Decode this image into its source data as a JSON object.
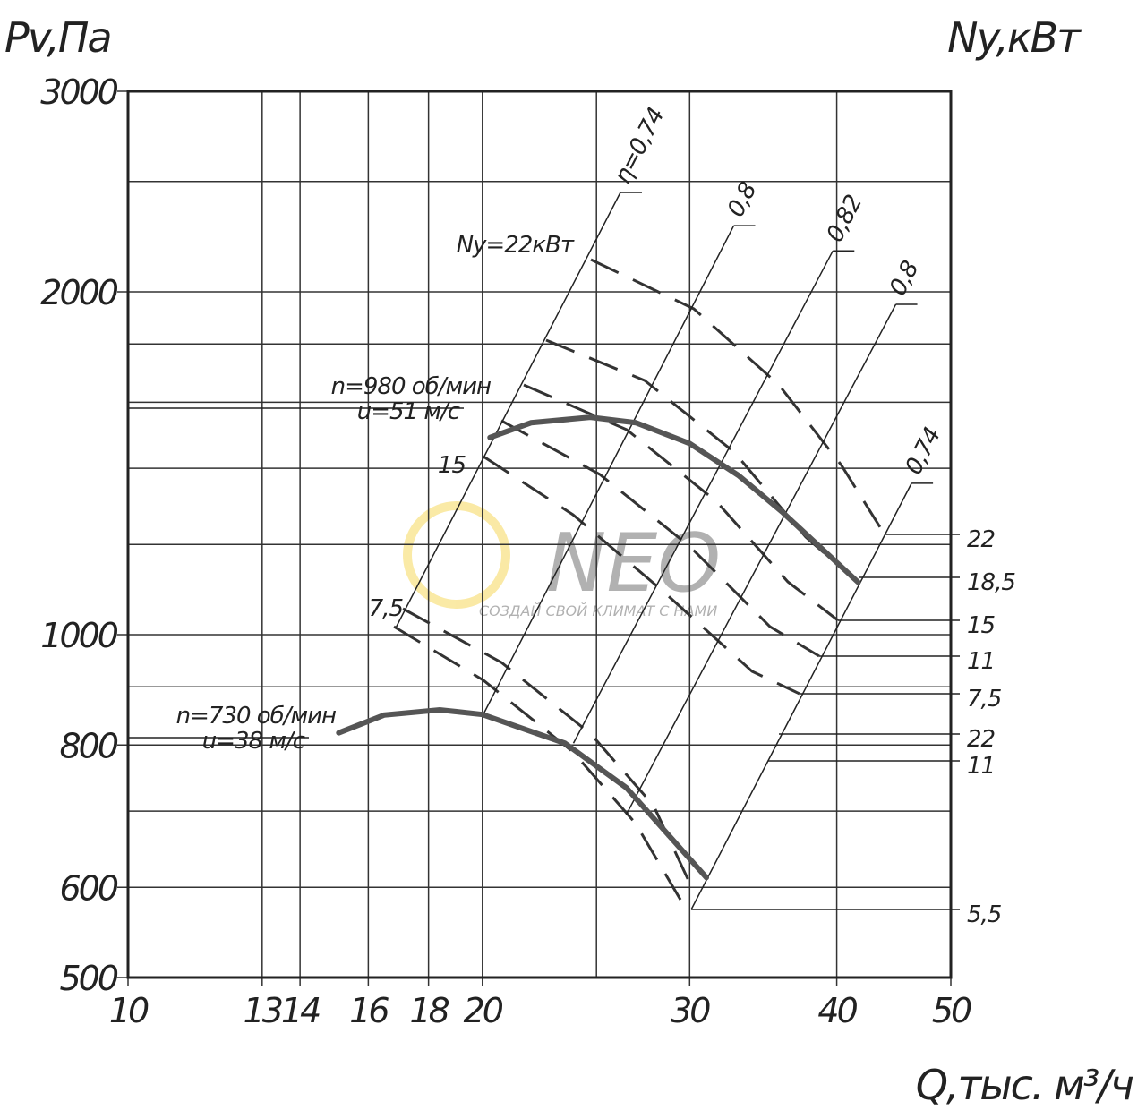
{
  "chart_data": {
    "type": "line",
    "y_label": "Pv,Па",
    "y2_label": "Ny,кВт",
    "x_label": "Q,тыс. м³/ч",
    "log_x": true,
    "log_y": true,
    "grid": true,
    "xlim": [
      10,
      50
    ],
    "ylim": [
      500,
      3000
    ],
    "xticks": [
      10,
      13,
      14,
      16,
      18,
      20,
      30,
      40,
      50
    ],
    "yticks": [
      500,
      600,
      800,
      1000,
      2000,
      3000
    ],
    "x_minor_grid": [
      25
    ],
    "y_minor_grid": [
      700,
      900,
      1200,
      1400,
      1600,
      1800,
      2500
    ],
    "series": [
      {
        "name": "n=980 об/мин",
        "subtitle": "u=51 м/с",
        "color": "#555555",
        "x": [
          20.3,
          22,
          24.7,
          27,
          30,
          33,
          36,
          41.7
        ],
        "values": [
          1490,
          1535,
          1552,
          1535,
          1472,
          1380,
          1280,
          1112
        ]
      },
      {
        "name": "n=730 об/мин",
        "subtitle": "u=38 м/с",
        "color": "#555555",
        "x": [
          15.1,
          16.5,
          18.4,
          20,
          23.5,
          26.5,
          31
        ],
        "values": [
          820,
          850,
          859,
          851,
          803,
          734,
          612
        ]
      }
    ],
    "efficiency_lines": [
      {
        "label": "η=0,74",
        "x": [
          16.9,
          26.2
        ],
        "values": [
          1016,
          2445
        ]
      },
      {
        "label": "0,8",
        "x": [
          20,
          32.7
        ],
        "values": [
          848,
          2286
        ]
      },
      {
        "label": "0,82",
        "x": [
          23.9,
          39.7
        ],
        "values": [
          803,
          2173
        ]
      },
      {
        "label": "0,8",
        "x": [
          26.5,
          44.9
        ],
        "values": [
          695,
          1950
        ]
      },
      {
        "label": "0,74",
        "x": [
          30.1,
          46.3
        ],
        "values": [
          574,
          1358
        ]
      }
    ],
    "power_labels_left": [
      "Ny=22кВт",
      "15",
      "7,5"
    ],
    "power_labels_right": [
      "22",
      "18,5",
      "15",
      "11",
      "7,5",
      "22",
      "11",
      "5,5"
    ],
    "watermark": {
      "logo": "NEO",
      "slogan": "СОЗДАЙ СВОЙ КЛИМАТ С НАМИ"
    }
  }
}
